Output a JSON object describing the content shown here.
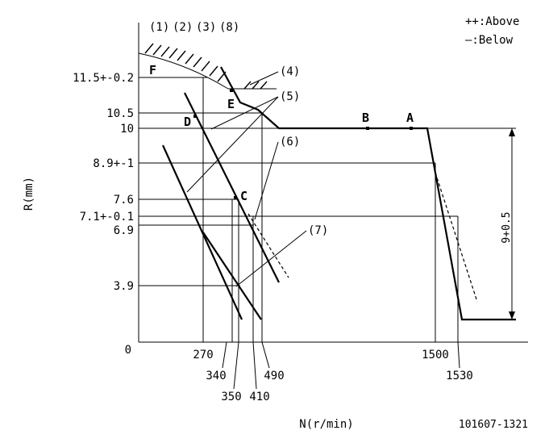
{
  "legend": {
    "above": "++:Above",
    "below": "—:Below"
  },
  "top_labels": [
    "(1)",
    "(2)",
    "(3)",
    "(8)"
  ],
  "callouts": {
    "c4": "(4)",
    "c5": "(5)",
    "c6": "(6)",
    "c7": "(7)"
  },
  "points": {
    "F": "F",
    "E": "E",
    "D": "D",
    "C": "C",
    "B": "B",
    "A": "A"
  },
  "y_ticks": {
    "t115": "11.5+-0.2",
    "t105": "10.5",
    "t10": "10",
    "t89": "8.9+-1",
    "t76": "7.6",
    "t71": "7.1+-0.1",
    "t69": "6.9",
    "t39": "3.9",
    "t0": "0"
  },
  "x_ticks": {
    "x270": "270",
    "x340": "340",
    "x350": "350",
    "x410": "410",
    "x490": "490",
    "x1500": "1500",
    "x1530": "1530"
  },
  "axis": {
    "ylabel": "R(mm)",
    "xlabel": "N(r/min)"
  },
  "dimension": "9+0.5",
  "figure_code": "101607-1321"
}
